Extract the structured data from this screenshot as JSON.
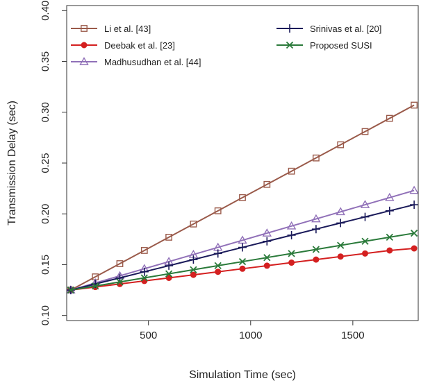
{
  "chart_data": {
    "type": "line",
    "xlabel": "Simulation Time (sec)",
    "ylabel": "Transmission Delay (sec)",
    "xlim": [
      100,
      1820
    ],
    "ylim": [
      0.095,
      0.405
    ],
    "xticks": [
      500,
      1000,
      1500
    ],
    "yticks": [
      0.1,
      0.15,
      0.2,
      0.25,
      0.3,
      0.35,
      0.4
    ],
    "ytick_labels": [
      "0.10",
      "0.15",
      "0.20",
      "0.25",
      "0.30",
      "0.35",
      "0.40"
    ],
    "legend_position": "top-left",
    "x": [
      120,
      240,
      360,
      480,
      600,
      720,
      840,
      960,
      1080,
      1200,
      1320,
      1440,
      1560,
      1680,
      1800
    ],
    "series": [
      {
        "name": "Li et al. [43]",
        "color": "#9a5a4a",
        "marker": "square",
        "values": [
          0.125,
          0.138,
          0.151,
          0.164,
          0.177,
          0.19,
          0.203,
          0.216,
          0.229,
          0.242,
          0.255,
          0.268,
          0.281,
          0.294,
          0.307
        ]
      },
      {
        "name": "Deebak et al. [23]",
        "color": "#d42020",
        "marker": "circle",
        "values": [
          0.125,
          0.128,
          0.131,
          0.134,
          0.137,
          0.14,
          0.143,
          0.146,
          0.149,
          0.152,
          0.155,
          0.158,
          0.161,
          0.164,
          0.166
        ]
      },
      {
        "name": "Madhusudhan et al. [44]",
        "color": "#9070b8",
        "marker": "triangle",
        "values": [
          0.125,
          0.132,
          0.139,
          0.146,
          0.153,
          0.16,
          0.167,
          0.174,
          0.181,
          0.188,
          0.195,
          0.202,
          0.209,
          0.216,
          0.223
        ]
      },
      {
        "name": "Srinivas et al. [20]",
        "color": "#1a1a5a",
        "marker": "plus",
        "values": [
          0.125,
          0.131,
          0.137,
          0.143,
          0.149,
          0.155,
          0.161,
          0.167,
          0.173,
          0.179,
          0.185,
          0.191,
          0.197,
          0.203,
          0.209
        ]
      },
      {
        "name": "Proposed SUSI",
        "color": "#2a7a3a",
        "marker": "cross",
        "values": [
          0.125,
          0.129,
          0.133,
          0.137,
          0.141,
          0.145,
          0.149,
          0.153,
          0.157,
          0.161,
          0.165,
          0.169,
          0.173,
          0.177,
          0.181
        ]
      }
    ]
  }
}
